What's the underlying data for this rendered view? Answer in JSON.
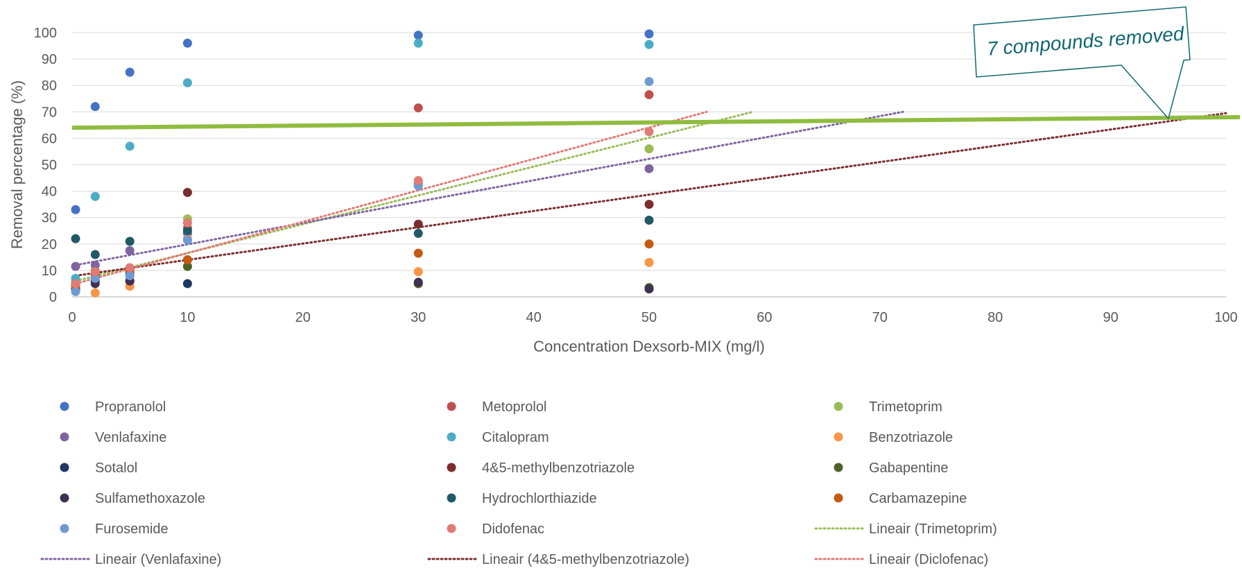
{
  "chart_data": {
    "type": "scatter",
    "title": "",
    "xlabel": "Concentration Dexsorb-MIX (mg/l)",
    "ylabel": "Removal percentage (%)",
    "xlim": [
      0,
      100
    ],
    "ylim": [
      0,
      100
    ],
    "x_ticks": [
      "0",
      "10",
      "20",
      "30",
      "40",
      "50",
      "60",
      "70",
      "80",
      "90",
      "100"
    ],
    "y_ticks": [
      "0",
      "10",
      "20",
      "30",
      "40",
      "50",
      "60",
      "70",
      "80",
      "90",
      "100"
    ],
    "grid": "horizontal",
    "legend_position": "bottom",
    "series": [
      {
        "name": "Propranolol",
        "color": "#4472c4",
        "points": [
          [
            0.3,
            33
          ],
          [
            2,
            72
          ],
          [
            5,
            85
          ],
          [
            10,
            96
          ],
          [
            30,
            99
          ],
          [
            50,
            99.5
          ]
        ]
      },
      {
        "name": "Metoprolol",
        "color": "#c0504d",
        "points": [
          [
            0.3,
            5
          ],
          [
            2,
            10
          ],
          [
            5,
            11
          ],
          [
            10,
            26
          ],
          [
            30,
            71.5
          ],
          [
            50,
            76.5
          ]
        ]
      },
      {
        "name": "Trimetoprim",
        "color": "#9bbb59",
        "points": [
          [
            0.3,
            6
          ],
          [
            2,
            10
          ],
          [
            5,
            10
          ],
          [
            10,
            29.5
          ],
          [
            30,
            43
          ],
          [
            50,
            56
          ]
        ]
      },
      {
        "name": "Venlafaxine",
        "color": "#8064a2",
        "points": [
          [
            0.3,
            11.5
          ],
          [
            2,
            12
          ],
          [
            5,
            17.5
          ],
          [
            10,
            24
          ],
          [
            30,
            42.5
          ],
          [
            50,
            48.5
          ]
        ]
      },
      {
        "name": "Citalopram",
        "color": "#4bacc6",
        "points": [
          [
            0.3,
            7
          ],
          [
            2,
            38
          ],
          [
            5,
            57
          ],
          [
            10,
            81
          ],
          [
            30,
            96
          ],
          [
            50,
            95.5
          ]
        ]
      },
      {
        "name": "Benzotriazole",
        "color": "#f79646",
        "points": [
          [
            0.3,
            3
          ],
          [
            2,
            1.5
          ],
          [
            5,
            4
          ],
          [
            10,
            22
          ],
          [
            30,
            9.5
          ],
          [
            50,
            13
          ]
        ]
      },
      {
        "name": "Sotalol",
        "color": "#1f3864",
        "points": [
          [
            0.3,
            3
          ],
          [
            2,
            6
          ],
          [
            5,
            6
          ],
          [
            10,
            5
          ],
          [
            30,
            5
          ],
          [
            50,
            3
          ]
        ]
      },
      {
        "name": "4&5-methylbenzotriazole",
        "color": "#7b2c2c",
        "points": [
          [
            0.3,
            4.5
          ],
          [
            2,
            8.5
          ],
          [
            5,
            9
          ],
          [
            10,
            39.5
          ],
          [
            30,
            27.5
          ],
          [
            50,
            35
          ]
        ]
      },
      {
        "name": "Gabapentine",
        "color": "#4f6228",
        "points": [
          [
            0.3,
            5
          ],
          [
            2,
            7
          ],
          [
            5,
            8
          ],
          [
            10,
            11.5
          ],
          [
            30,
            5
          ],
          [
            50,
            3.5
          ]
        ]
      },
      {
        "name": "Sulfamethoxazole",
        "color": "#3f3151",
        "points": [
          [
            0.3,
            4
          ],
          [
            2,
            5
          ],
          [
            5,
            6
          ],
          [
            10,
            14
          ],
          [
            30,
            5.5
          ],
          [
            50,
            3
          ]
        ]
      },
      {
        "name": "Hydrochlorthiazide",
        "color": "#215968",
        "points": [
          [
            0.3,
            22
          ],
          [
            2,
            16
          ],
          [
            5,
            21
          ],
          [
            10,
            25
          ],
          [
            30,
            24
          ],
          [
            50,
            29
          ]
        ]
      },
      {
        "name": "Carbamazepine",
        "color": "#c55a11",
        "points": [
          [
            0.3,
            4
          ],
          [
            2,
            9
          ],
          [
            5,
            10
          ],
          [
            10,
            14
          ],
          [
            30,
            16.5
          ],
          [
            50,
            20
          ]
        ]
      },
      {
        "name": "Furosemide",
        "color": "#6f9ad3",
        "points": [
          [
            0.3,
            2
          ],
          [
            2,
            7
          ],
          [
            5,
            8
          ],
          [
            10,
            21.5
          ],
          [
            30,
            42
          ],
          [
            50,
            81.5
          ]
        ]
      },
      {
        "name": "Didofenac",
        "color": "#e07b75",
        "points": [
          [
            0.3,
            5
          ],
          [
            2,
            9.5
          ],
          [
            5,
            11
          ],
          [
            10,
            28
          ],
          [
            30,
            44
          ],
          [
            50,
            62.5
          ]
        ]
      }
    ],
    "trendlines": [
      {
        "name": "Lineair (Trimetoprim)",
        "color": "#9bbb59",
        "from": [
          0.3,
          6
        ],
        "to": [
          59,
          70
        ]
      },
      {
        "name": "Lineair (Venlafaxine)",
        "color": "#8064a2",
        "from": [
          0.3,
          12
        ],
        "to": [
          72,
          70
        ]
      },
      {
        "name": "Lineair (4&5-methylbenzotriazole)",
        "color": "#7b2c2c",
        "from": [
          0.3,
          8
        ],
        "to": [
          100,
          69.5
        ]
      },
      {
        "name": "Lineair (Diclofenac)",
        "color": "#e07b75",
        "from": [
          0.3,
          5
        ],
        "to": [
          55,
          70
        ]
      }
    ],
    "threshold_line": {
      "color": "#8fbc3f",
      "from": [
        0,
        64
      ],
      "to": [
        100,
        68
      ]
    },
    "annotation": {
      "text": "7 compounds removed",
      "color": "#0f6670",
      "points_to": [
        95,
        67.5
      ]
    }
  }
}
